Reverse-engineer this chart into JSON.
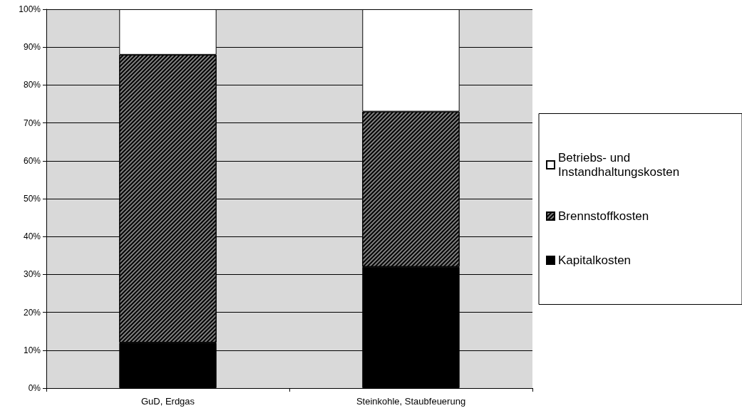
{
  "chart_data": {
    "type": "bar",
    "stacked": true,
    "categories": [
      "GuD, Erdgas",
      "Steinkohle, Staubfeuerung"
    ],
    "series": [
      {
        "name": "Kapitalkosten",
        "color": "#000000",
        "values": [
          12,
          32
        ]
      },
      {
        "name": "Brennstoffkosten",
        "color": "#808080",
        "values": [
          76,
          41
        ]
      },
      {
        "name": "Betriebs- und Instandhaltungskosten",
        "color": "#ffffff",
        "values": [
          12,
          27
        ]
      }
    ],
    "ylim": [
      0,
      100
    ],
    "yticks": [
      {
        "value": 0,
        "label": "0%"
      },
      {
        "value": 10,
        "label": "10%"
      },
      {
        "value": 20,
        "label": "20%"
      },
      {
        "value": 30,
        "label": "30%"
      },
      {
        "value": 40,
        "label": "40%"
      },
      {
        "value": 50,
        "label": "50%"
      },
      {
        "value": 60,
        "label": "60%"
      },
      {
        "value": 70,
        "label": "70%"
      },
      {
        "value": 80,
        "label": "80%"
      },
      {
        "value": 90,
        "label": "90%"
      },
      {
        "value": 100,
        "label": "100%"
      }
    ],
    "grid": "y",
    "legend": "right"
  }
}
